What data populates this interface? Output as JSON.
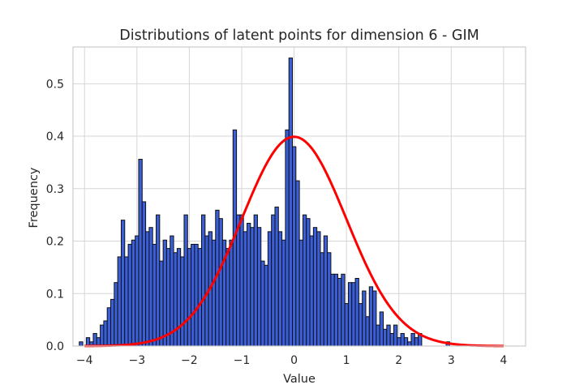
{
  "chart_data": {
    "type": "bar",
    "title": "Distributions of latent points for dimension 6 - GIM",
    "xlabel": "Value",
    "ylabel": "Frequency",
    "xlim": [
      -4.22,
      4.42
    ],
    "ylim": [
      0,
      0.57
    ],
    "xticks": [
      -4,
      -3,
      -2,
      -1,
      0,
      1,
      2,
      3,
      4
    ],
    "xtick_labels": [
      "−4",
      "−3",
      "−2",
      "−1",
      "0",
      "1",
      "2",
      "3",
      "4"
    ],
    "yticks": [
      0.0,
      0.1,
      0.2,
      0.3,
      0.4,
      0.5
    ],
    "ytick_labels": [
      "0.0",
      "0.1",
      "0.2",
      "0.3",
      "0.4",
      "0.5"
    ],
    "grid": true,
    "histogram": {
      "bin_start": -4.1,
      "bin_width": 0.0667,
      "values": [
        0.008,
        0.0,
        0.016,
        0.008,
        0.024,
        0.016,
        0.04,
        0.048,
        0.073,
        0.089,
        0.121,
        0.17,
        0.24,
        0.17,
        0.194,
        0.202,
        0.21,
        0.356,
        0.275,
        0.218,
        0.226,
        0.194,
        0.25,
        0.162,
        0.202,
        0.186,
        0.21,
        0.178,
        0.186,
        0.17,
        0.25,
        0.186,
        0.194,
        0.194,
        0.186,
        0.25,
        0.21,
        0.218,
        0.202,
        0.259,
        0.243,
        0.202,
        0.186,
        0.202,
        0.412,
        0.25,
        0.25,
        0.218,
        0.234,
        0.226,
        0.25,
        0.226,
        0.162,
        0.154,
        0.218,
        0.25,
        0.265,
        0.218,
        0.202,
        0.412,
        0.549,
        0.38,
        0.315,
        0.202,
        0.25,
        0.243,
        0.21,
        0.226,
        0.218,
        0.178,
        0.21,
        0.178,
        0.137,
        0.137,
        0.129,
        0.137,
        0.081,
        0.121,
        0.121,
        0.129,
        0.081,
        0.105,
        0.056,
        0.113,
        0.105,
        0.04,
        0.065,
        0.032,
        0.04,
        0.024,
        0.04,
        0.016,
        0.024,
        0.016,
        0.008,
        0.024,
        0.016,
        0.024,
        0.0,
        0.0,
        0.0,
        0.0,
        0.0,
        0.0,
        0.0,
        0.008
      ],
      "bar_color": "#3a5fd9",
      "edge_color": "#111111"
    },
    "curve": {
      "description": "standard normal density",
      "mean": 0,
      "std": 1,
      "x_range": [
        -4,
        4
      ],
      "color": "#ff0000"
    }
  }
}
